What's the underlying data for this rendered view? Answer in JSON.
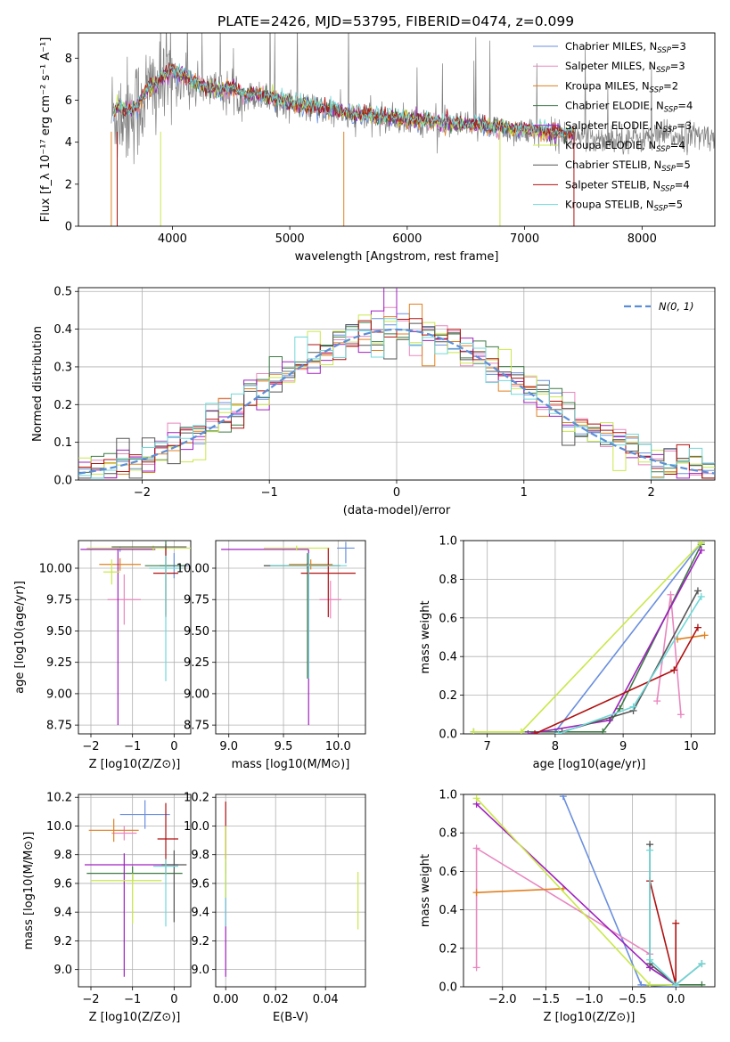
{
  "figure_title": "PLATE=2426, MJD=53795, FIBERID=0474, z=0.099",
  "colors": {
    "Chabrier MILES": "#6a8fdf",
    "Salpeter MILES": "#e887bf",
    "Kroupa MILES": "#e08020",
    "Chabrier ELODIE": "#3d7a45",
    "Salpeter ELODIE": "#a020c0",
    "Kroupa ELODIE": "#c9e84a",
    "Chabrier STELIB": "#555555",
    "Salpeter STELIB": "#b01010",
    "Kroupa STELIB": "#70d8d8",
    "data": "#808080",
    "normal": "#5b8ed6"
  },
  "chart_data": [
    {
      "id": "spectrum",
      "type": "line",
      "title": "PLATE=2426, MJD=53795, FIBERID=0474, z=0.099",
      "xlabel": "wavelength [Angstrom, rest frame]",
      "ylabel": "Flux [f_λ 10⁻¹⁷ erg cm⁻² s⁻¹ A⁻¹]",
      "xlim": [
        3200,
        8620
      ],
      "ylim": [
        0,
        9.2
      ],
      "xticks": [
        4000,
        5000,
        6000,
        7000,
        8000
      ],
      "yticks": [
        0,
        2,
        4,
        6,
        8
      ],
      "grid": false,
      "legend_position": "upper right",
      "legend": [
        "Chabrier MILES, N_SSP=3",
        "Salpeter MILES, N_SSP=3",
        "Kroupa MILES, N_SSP=2",
        "Chabrier ELODIE, N_SSP=4",
        "Salpeter ELODIE, N_SSP=3",
        "Kroupa ELODIE, N_SSP=4",
        "Chabrier STELIB, N_SSP=5",
        "Salpeter STELIB, N_SSP=4",
        "Kroupa STELIB, N_SSP=5"
      ],
      "model_continuum": {
        "x": [
          3500,
          3550,
          3600,
          3700,
          3800,
          3900,
          4000,
          4100,
          4200,
          4300,
          4400,
          4500,
          4600,
          4700,
          4800,
          4900,
          5000,
          5200,
          5400,
          5600,
          5800,
          6000,
          6200,
          6400,
          6600,
          6800,
          7000,
          7200,
          7400
        ],
        "y": [
          5.4,
          5.8,
          5.5,
          5.7,
          6.6,
          7.0,
          7.4,
          7.2,
          6.8,
          6.6,
          6.5,
          6.6,
          6.3,
          6.3,
          6.2,
          6.0,
          5.9,
          5.7,
          5.5,
          5.3,
          5.2,
          5.1,
          5.0,
          4.9,
          4.8,
          4.7,
          4.6,
          4.5,
          4.4
        ]
      },
      "data_continuum": {
        "x": [
          3500,
          3600,
          3700,
          3800,
          3900,
          4000,
          4200,
          4400,
          4600,
          4800,
          5000,
          5200,
          5400,
          5600,
          5800,
          6000,
          6200,
          6400,
          6600,
          6800,
          7000,
          7200,
          7400,
          7600,
          7800,
          8000,
          8200,
          8400,
          8620
        ],
        "y": [
          5.3,
          5.4,
          5.6,
          6.4,
          6.8,
          7.1,
          6.7,
          6.5,
          6.3,
          6.1,
          5.8,
          5.6,
          5.4,
          5.2,
          5.1,
          5.0,
          4.9,
          4.8,
          4.7,
          4.6,
          4.5,
          4.4,
          4.3,
          4.2,
          4.2,
          4.2,
          4.3,
          4.3,
          4.3
        ]
      }
    },
    {
      "id": "residual-histogram",
      "type": "bar",
      "xlabel": "(data-model)/error",
      "ylabel": "Normed distribution",
      "xlim": [
        -2.5,
        2.5
      ],
      "ylim": [
        0,
        0.51
      ],
      "xticks": [
        -2,
        -1,
        0,
        1,
        2
      ],
      "yticks": [
        0.0,
        0.1,
        0.2,
        0.3,
        0.4,
        0.5
      ],
      "grid": true,
      "legend_position": "upper right",
      "legend": [
        "N(0, 1)"
      ],
      "bin_width": 0.1,
      "note": "step histograms of residuals for the nine model fits, overlaid with the standard normal curve"
    },
    {
      "id": "age-vs-Z",
      "type": "scatter",
      "xlabel": "Z [log10(Z/Z⊙)]",
      "ylabel": "age  [log10(age/yr)]",
      "xlim": [
        -2.3,
        0.4
      ],
      "ylim": [
        8.68,
        10.22
      ],
      "xticks": [
        -2,
        -1,
        0
      ],
      "yticks": [
        8.75,
        9.0,
        9.25,
        9.5,
        9.75,
        10.0
      ],
      "grid": true,
      "errorbars": [
        {
          "model": "Chabrier MILES",
          "x": 0.0,
          "xerr": [
            0.35,
            0.35
          ],
          "y": 10.02,
          "yerr": [
            0.1,
            0.1
          ]
        },
        {
          "model": "Chabrier MILES",
          "x": -1.3,
          "xerr": [
            0.8,
            0.8
          ],
          "y": 10.15,
          "yerr": [
            0.02,
            0.02
          ]
        },
        {
          "model": "Salpeter MILES",
          "x": -1.2,
          "xerr": [
            0.4,
            0.4
          ],
          "y": 9.75,
          "yerr": [
            0.2,
            0.2
          ]
        },
        {
          "model": "Kroupa MILES",
          "x": -1.3,
          "xerr": [
            0.5,
            0.5
          ],
          "y": 10.03,
          "yerr": [
            0.05,
            0.05
          ]
        },
        {
          "model": "Chabrier ELODIE",
          "x": -0.2,
          "xerr": [
            0.5,
            0.5
          ],
          "y": 10.02,
          "yerr": [
            0.4,
            0.4
          ]
        },
        {
          "model": "Salpeter ELODIE",
          "x": -1.35,
          "xerr": [
            0.9,
            0.9
          ],
          "y": 10.15,
          "yerr": [
            1.4,
            0.0
          ]
        },
        {
          "model": "Kroupa ELODIE",
          "x": -0.5,
          "xerr": [
            1.6,
            1.0
          ],
          "y": 10.16,
          "yerr": [
            0.02,
            0.02
          ]
        },
        {
          "model": "Kroupa ELODIE",
          "x": -1.5,
          "xerr": [
            0.2,
            0.2
          ],
          "y": 9.97,
          "yerr": [
            0.1,
            0.1
          ]
        },
        {
          "model": "Chabrier STELIB",
          "x": -0.2,
          "xerr": [
            1.3,
            0.5
          ],
          "y": 10.17,
          "yerr": [
            0.02,
            0.02
          ]
        },
        {
          "model": "Salpeter STELIB",
          "x": -0.2,
          "xerr": [
            0.3,
            0.3
          ],
          "y": 9.96,
          "yerr": [
            0.35,
            0.2
          ]
        },
        {
          "model": "Kroupa STELIB",
          "x": -0.2,
          "xerr": [
            0.4,
            0.4
          ],
          "y": 10.0,
          "yerr": [
            0.9,
            0.1
          ]
        }
      ]
    },
    {
      "id": "age-vs-mass",
      "type": "scatter",
      "xlabel": "mass [log10(M/M⊙)]",
      "ylabel": "",
      "xlim": [
        8.88,
        10.25
      ],
      "ylim": [
        8.68,
        10.22
      ],
      "xticks": [
        9.0,
        9.5,
        10.0
      ],
      "yticks": [
        8.75,
        9.0,
        9.25,
        9.5,
        9.75,
        10.0
      ],
      "grid": true,
      "errorbars": [
        {
          "model": "Chabrier MILES",
          "x": 10.07,
          "xerr": [
            0.08,
            0.08
          ],
          "y": 10.16,
          "yerr": [
            0.12,
            0.05
          ]
        },
        {
          "model": "Salpeter MILES",
          "x": 9.93,
          "xerr": [
            0.1,
            0.1
          ],
          "y": 9.75,
          "yerr": [
            0.15,
            0.15
          ]
        },
        {
          "model": "Kroupa MILES",
          "x": 9.75,
          "xerr": [
            0.2,
            0.2
          ],
          "y": 10.03,
          "yerr": [
            0.04,
            0.04
          ]
        },
        {
          "model": "Chabrier ELODIE",
          "x": 9.72,
          "xerr": [
            0.4,
            0.3
          ],
          "y": 10.02,
          "yerr": [
            0.9,
            0.1
          ]
        },
        {
          "model": "Salpeter ELODIE",
          "x": 9.73,
          "xerr": [
            0.8,
            0.0
          ],
          "y": 10.15,
          "yerr": [
            1.4,
            0.0
          ]
        },
        {
          "model": "Kroupa ELODIE",
          "x": 9.62,
          "xerr": [
            0.3,
            0.3
          ],
          "y": 10.16,
          "yerr": [
            0.02,
            0.02
          ]
        },
        {
          "model": "Chabrier STELIB",
          "x": 9.72,
          "xerr": [
            0.4,
            0.3
          ],
          "y": 10.02,
          "yerr": [
            0.02,
            0.02
          ]
        },
        {
          "model": "Salpeter STELIB",
          "x": 9.91,
          "xerr": [
            0.25,
            0.25
          ],
          "y": 9.96,
          "yerr": [
            0.35,
            0.2
          ]
        },
        {
          "model": "Kroupa STELIB",
          "x": 9.73,
          "xerr": [
            0.35,
            0.35
          ],
          "y": 10.02,
          "yerr": [
            0.9,
            0.1
          ]
        }
      ]
    },
    {
      "id": "weight-vs-age",
      "type": "line",
      "xlabel": "age  [log10(age/yr)]",
      "ylabel": "mass weight",
      "xlim": [
        6.65,
        10.35
      ],
      "ylim": [
        0,
        1.0
      ],
      "xticks": [
        7,
        8,
        9,
        10
      ],
      "yticks": [
        0.0,
        0.2,
        0.4,
        0.6,
        0.8,
        1.0
      ],
      "grid": true,
      "series": [
        {
          "model": "Chabrier MILES",
          "x": [
            8.0,
            10.15
          ],
          "y": [
            0.01,
            0.99
          ]
        },
        {
          "model": "Salpeter MILES",
          "x": [
            9.5,
            9.7,
            9.85
          ],
          "y": [
            0.17,
            0.72,
            0.1
          ]
        },
        {
          "model": "Kroupa MILES",
          "x": [
            9.8,
            10.2
          ],
          "y": [
            0.49,
            0.51
          ]
        },
        {
          "model": "Chabrier ELODIE",
          "x": [
            6.8,
            8.7,
            8.95,
            10.15
          ],
          "y": [
            0.01,
            0.01,
            0.13,
            0.98
          ]
        },
        {
          "model": "Salpeter ELODIE",
          "x": [
            7.6,
            8.8,
            10.15
          ],
          "y": [
            0.0,
            0.07,
            0.95
          ]
        },
        {
          "model": "Kroupa ELODIE",
          "x": [
            6.8,
            7.5,
            10.15
          ],
          "y": [
            0.01,
            0.01,
            0.99
          ]
        },
        {
          "model": "Chabrier STELIB",
          "x": [
            8.1,
            9.15,
            10.1
          ],
          "y": [
            0.01,
            0.12,
            0.74
          ]
        },
        {
          "model": "Salpeter STELIB",
          "x": [
            7.7,
            9.75,
            10.1
          ],
          "y": [
            0.0,
            0.33,
            0.55
          ]
        },
        {
          "model": "Kroupa STELIB",
          "x": [
            8.05,
            9.15,
            10.15
          ],
          "y": [
            0.0,
            0.14,
            0.71
          ]
        }
      ]
    },
    {
      "id": "mass-vs-Z",
      "type": "scatter",
      "xlabel": "Z [log10(Z/Z⊙)]",
      "ylabel": "mass [log10(M/M⊙)]",
      "xlim": [
        -2.3,
        0.4
      ],
      "ylim": [
        8.88,
        10.22
      ],
      "xticks": [
        -2,
        -1,
        0
      ],
      "yticks": [
        9.0,
        9.2,
        9.4,
        9.6,
        9.8,
        10.0,
        10.2
      ],
      "grid": true,
      "errorbars": [
        {
          "model": "Chabrier MILES",
          "x": -0.7,
          "xerr": [
            0.6,
            0.6
          ],
          "y": 10.08,
          "yerr": [
            0.1,
            0.1
          ]
        },
        {
          "model": "Salpeter MILES",
          "x": -1.2,
          "xerr": [
            0.3,
            0.3
          ],
          "y": 9.95,
          "yerr": [
            0.05,
            0.05
          ]
        },
        {
          "model": "Kroupa MILES",
          "x": -1.45,
          "xerr": [
            0.6,
            0.6
          ],
          "y": 9.97,
          "yerr": [
            0.08,
            0.08
          ]
        },
        {
          "model": "Chabrier ELODIE",
          "x": -1.0,
          "xerr": [
            1.1,
            1.2
          ],
          "y": 9.67,
          "yerr": [
            0.05,
            0.05
          ]
        },
        {
          "model": "Salpeter ELODIE",
          "x": -1.2,
          "xerr": [
            0.95,
            1.3
          ],
          "y": 9.73,
          "yerr": [
            0.78,
            0.08
          ]
        },
        {
          "model": "Kroupa ELODIE",
          "x": -1.0,
          "xerr": [
            1.0,
            0.7
          ],
          "y": 9.62,
          "yerr": [
            0.3,
            0.05
          ]
        },
        {
          "model": "Chabrier STELIB",
          "x": 0.0,
          "xerr": [
            0.3,
            0.3
          ],
          "y": 9.73,
          "yerr": [
            0.4,
            0.1
          ]
        },
        {
          "model": "Salpeter STELIB",
          "x": -0.2,
          "xerr": [
            0.2,
            0.3
          ],
          "y": 9.91,
          "yerr": [
            0.25,
            0.25
          ]
        },
        {
          "model": "Kroupa STELIB",
          "x": -0.2,
          "xerr": [
            0.3,
            0.3
          ],
          "y": 9.72,
          "yerr": [
            0.42,
            0.05
          ]
        }
      ]
    },
    {
      "id": "mass-vs-ebv",
      "type": "scatter",
      "xlabel": "E(B-V)",
      "ylabel": "",
      "xlim": [
        -0.004,
        0.056
      ],
      "ylim": [
        8.88,
        10.22
      ],
      "xticks": [
        0.0,
        0.02,
        0.04
      ],
      "yticks": [
        9.0,
        9.2,
        9.4,
        9.6,
        9.8,
        10.0,
        10.2
      ],
      "grid": true,
      "errorbars": [
        {
          "model": "Salpeter STELIB",
          "x": 0.0,
          "xerr": [
            0,
            0
          ],
          "y": 9.92,
          "yerr": [
            0.25,
            0.25
          ]
        },
        {
          "model": "Salpeter ELODIE",
          "x": 0.0,
          "xerr": [
            0,
            0
          ],
          "y": 9.5,
          "yerr": [
            0.55,
            0.25
          ]
        },
        {
          "model": "Kroupa STELIB",
          "x": 0.0,
          "xerr": [
            0,
            0
          ],
          "y": 9.72,
          "yerr": [
            0.42,
            0.05
          ]
        },
        {
          "model": "Kroupa ELODIE",
          "x": 0.053,
          "xerr": [
            0,
            0
          ],
          "y": 9.48,
          "yerr": [
            0.2,
            0.2
          ]
        },
        {
          "model": "Kroupa ELODIE",
          "x": 0.0,
          "xerr": [
            0,
            0
          ],
          "y": 9.8,
          "yerr": [
            0.3,
            0.2
          ]
        }
      ]
    },
    {
      "id": "weight-vs-Z",
      "type": "line",
      "xlabel": "Z [log10(Z/Z⊙)]",
      "ylabel": "mass weight",
      "xlim": [
        -2.45,
        0.45
      ],
      "ylim": [
        0,
        1.0
      ],
      "xticks": [
        -2.0,
        -1.5,
        -1.0,
        -0.5,
        0.0
      ],
      "yticks": [
        0.0,
        0.2,
        0.4,
        0.6,
        0.8,
        1.0
      ],
      "grid": true,
      "series": [
        {
          "model": "Chabrier MILES",
          "x": [
            -1.3,
            -0.4,
            0.0
          ],
          "y": [
            0.99,
            0.01,
            0.0
          ]
        },
        {
          "model": "Salpeter MILES",
          "x": [
            -2.3,
            -2.3,
            -0.3,
            -0.3
          ],
          "y": [
            0.1,
            0.72,
            0.17,
            0.12
          ]
        },
        {
          "model": "Kroupa MILES",
          "x": [
            -2.3,
            -1.3
          ],
          "y": [
            0.49,
            0.51
          ]
        },
        {
          "model": "Chabrier ELODIE",
          "x": [
            -0.3,
            0.0,
            0.3
          ],
          "y": [
            0.1,
            0.01,
            0.01
          ]
        },
        {
          "model": "Salpeter ELODIE",
          "x": [
            -2.3,
            -0.3,
            0.0
          ],
          "y": [
            0.95,
            0.1,
            0.01
          ]
        },
        {
          "model": "Kroupa ELODIE",
          "x": [
            -2.3,
            -0.3,
            0.0
          ],
          "y": [
            0.98,
            0.01,
            0.01
          ]
        },
        {
          "model": "Chabrier STELIB",
          "x": [
            -0.3,
            -0.3,
            0.0,
            0.3
          ],
          "y": [
            0.74,
            0.12,
            0.01,
            0.12
          ]
        },
        {
          "model": "Salpeter STELIB",
          "x": [
            -0.3,
            0.0,
            0.0
          ],
          "y": [
            0.55,
            0.01,
            0.33
          ]
        },
        {
          "model": "Kroupa STELIB",
          "x": [
            -0.3,
            -0.3,
            0.0,
            0.3
          ],
          "y": [
            0.71,
            0.14,
            0.01,
            0.12
          ]
        }
      ]
    }
  ]
}
